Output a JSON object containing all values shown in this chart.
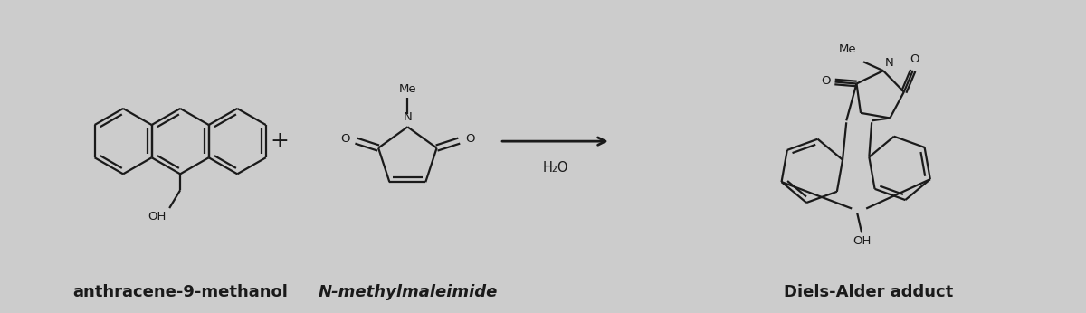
{
  "background_color": "#cccccc",
  "line_color": "#1a1a1a",
  "text_color": "#1a1a1a",
  "label_anthracene": "anthracene-9-methanol",
  "label_nmm": "N-methylmaleimide",
  "label_adduct": "Diels-Alder adduct",
  "label_h2o": "H₂O",
  "font_size_label": 13,
  "font_size_atom": 10,
  "fig_width": 12.0,
  "fig_height": 3.46,
  "lw": 1.6
}
